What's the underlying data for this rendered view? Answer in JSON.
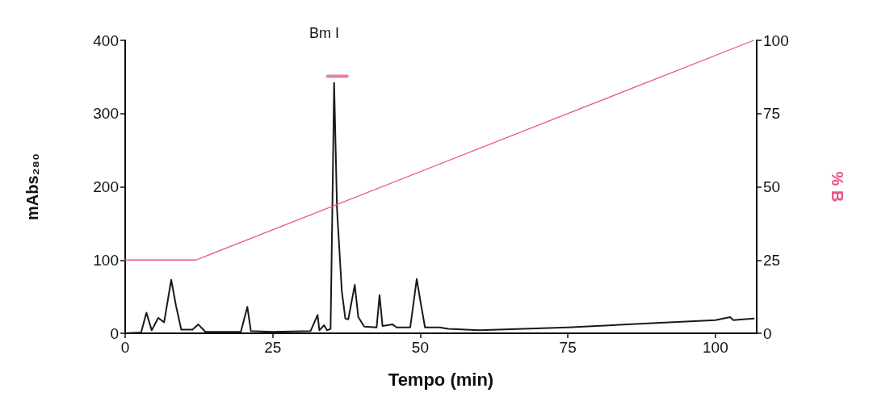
{
  "chart_data": {
    "type": "line",
    "xlabel": "Tempo (min)",
    "ylabel": "mAbs₂₈₀",
    "y2label": "% B",
    "xlim": [
      0,
      107
    ],
    "xticks": [
      0,
      25,
      50,
      75,
      100
    ],
    "ylim": [
      0,
      400
    ],
    "yticks": [
      0,
      100,
      200,
      300,
      400
    ],
    "y2lim": [
      0,
      100
    ],
    "y2ticks": [
      0,
      25,
      50,
      75,
      100
    ],
    "grid": false,
    "marker": "none",
    "line_style": "solid",
    "annotations": [
      "Bm I"
    ],
    "series": [
      {
        "color": "#1a1a1a",
        "x": [
          0,
          2.7,
          3.6,
          4.5,
          5.6,
          6.6,
          7.8,
          8.6,
          9.5,
          11.4,
          12.4,
          13.6,
          19.6,
          20.7,
          21.3,
          25,
          31.4,
          32.6,
          32.9,
          33.7,
          34.2,
          34.8,
          35.1,
          35.4,
          35.9,
          36.7,
          37.3,
          37.8,
          38.9,
          39.5,
          40.5,
          42.6,
          43.1,
          43.6,
          45.3,
          46,
          48.3,
          49.4,
          50.1,
          50.8,
          53.3,
          54.7,
          60,
          75,
          90,
          100,
          102.5,
          103,
          106.5
        ],
        "values": [
          0,
          1,
          28,
          4,
          21,
          15,
          73,
          38,
          5,
          5,
          12,
          2,
          2,
          36,
          3,
          2,
          3,
          25,
          4,
          11,
          4,
          6,
          168,
          342,
          168,
          58,
          20,
          19,
          66,
          22,
          9,
          8,
          52,
          10,
          12,
          8,
          8,
          74,
          40,
          8,
          8,
          6,
          4,
          8,
          14,
          18,
          22,
          18,
          20
        ]
      },
      {
        "color": "#e8558a",
        "axis": "y2",
        "x": [
          0,
          12,
          106.5
        ],
        "values": [
          25,
          25,
          100
        ]
      },
      {
        "color": "#ea7fa6",
        "x": [
          34.3,
          37.6
        ],
        "values": [
          351,
          351
        ]
      }
    ]
  }
}
